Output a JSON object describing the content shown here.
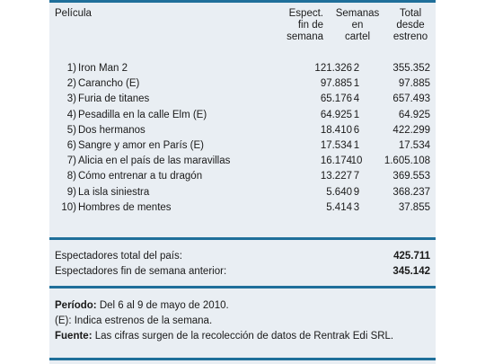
{
  "headers": {
    "film": "Película",
    "weekend": [
      "Espect.",
      "fin de",
      "semana"
    ],
    "weeks": [
      "Semanas",
      "en",
      "cartel"
    ],
    "total": [
      "Total",
      "desde",
      "estreno"
    ]
  },
  "rows": [
    {
      "num": "1)",
      "title": "Iron Man 2",
      "weekend": "121.326",
      "weeks": "2",
      "total": "355.352"
    },
    {
      "num": "2)",
      "title": "Carancho (E)",
      "weekend": "97.885",
      "weeks": "1",
      "total": "97.885"
    },
    {
      "num": "3)",
      "title": "Furia de titanes",
      "weekend": "65.176",
      "weeks": "4",
      "total": "657.493"
    },
    {
      "num": "4)",
      "title": "Pesadilla en la calle Elm (E)",
      "weekend": "64.925",
      "weeks": "1",
      "total": "64.925"
    },
    {
      "num": "5)",
      "title": "Dos hermanos",
      "weekend": "18.410",
      "weeks": "6",
      "total": "422.299"
    },
    {
      "num": "6)",
      "title": "Sangre y amor en París (E)",
      "weekend": "17.534",
      "weeks": "1",
      "total": "17.534"
    },
    {
      "num": "7)",
      "title": "Alicia en el país de las maravillas",
      "weekend": "16.174",
      "weeks": "10",
      "total": "1.605.108"
    },
    {
      "num": "8)",
      "title": "Cómo entrenar a tu dragón",
      "weekend": "13.227",
      "weeks": "7",
      "total": "369.553"
    },
    {
      "num": "9)",
      "title": "La isla siniestra",
      "weekend": "5.640",
      "weeks": "9",
      "total": "368.237"
    },
    {
      "num": "10)",
      "title": "Hombres de mentes",
      "weekend": "5.414",
      "weeks": "3",
      "total": "37.855"
    }
  ],
  "summary": {
    "country_total_label": "Espectadores total del país:",
    "country_total_value": "425.711",
    "prev_weekend_label": "Espectadores fin de semana anterior:",
    "prev_weekend_value": "345.142"
  },
  "notes": {
    "period_label": "Período:",
    "period_text": " Del 6 al 9 de mayo de 2010.",
    "premiere_label": "(E):",
    "premiere_text": " Indica estrenos de la semana.",
    "source_label": "Fuente:",
    "source_text": " Las cifras surgen de la recolección de datos de Rentrak Edi SRL."
  },
  "colors": {
    "rule": "#1f6f9a",
    "panel": "#e9eef3"
  }
}
